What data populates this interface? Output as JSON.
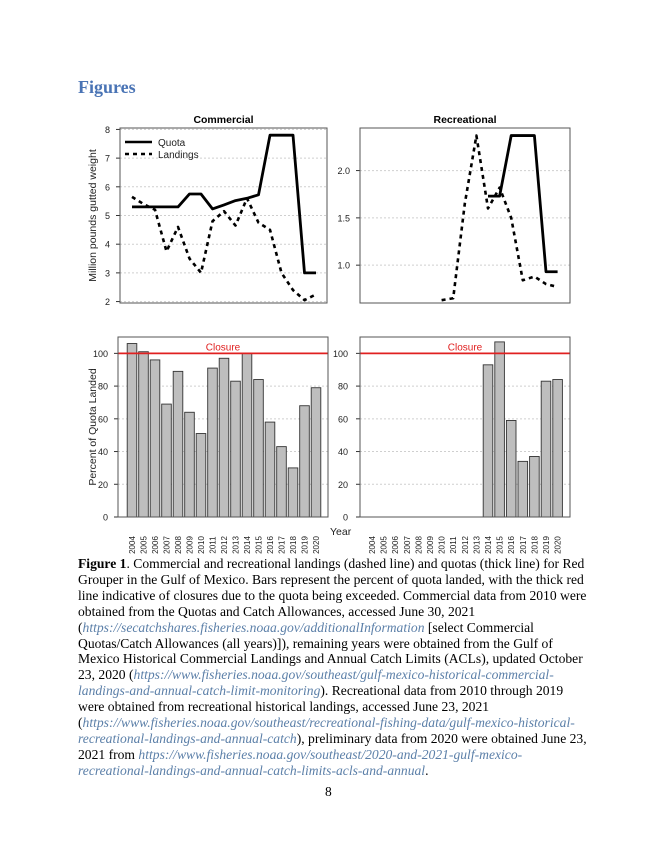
{
  "heading": "Figures",
  "chart_data": [
    {
      "type": "line",
      "title": "Commercial",
      "ylabel": "Million pounds gutted weight",
      "ylim": [
        1.95,
        8.05
      ],
      "yticks": [
        "2",
        "3",
        "4",
        "5",
        "6",
        "7",
        "8"
      ],
      "grid": true,
      "legend": {
        "placement": "top-left",
        "entries": [
          "Quota",
          "Landings"
        ]
      },
      "x": [
        2004,
        2005,
        2006,
        2007,
        2008,
        2009,
        2010,
        2011,
        2012,
        2013,
        2014,
        2015,
        2016,
        2017,
        2018,
        2019,
        2020
      ],
      "series": [
        {
          "name": "Quota",
          "style": "solid-thick",
          "values": [
            5.3,
            5.3,
            5.3,
            5.3,
            5.3,
            5.75,
            5.75,
            5.23,
            5.37,
            5.52,
            5.6,
            5.72,
            7.8,
            7.8,
            7.8,
            3.0,
            3.0
          ]
        },
        {
          "name": "Landings",
          "style": "dashed",
          "values": [
            5.65,
            5.4,
            5.2,
            3.75,
            4.6,
            3.5,
            3.0,
            4.8,
            5.15,
            4.65,
            5.6,
            4.75,
            4.5,
            3.0,
            2.4,
            2.05,
            2.25
          ]
        }
      ]
    },
    {
      "type": "line",
      "title": "Recreational",
      "ylim": [
        0.6,
        2.45
      ],
      "yticks": [
        "1.0",
        "1.5",
        "2.0"
      ],
      "grid": true,
      "x": [
        2004,
        2005,
        2006,
        2007,
        2008,
        2009,
        2010,
        2011,
        2012,
        2013,
        2014,
        2015,
        2016,
        2017,
        2018,
        2019,
        2020
      ],
      "series": [
        {
          "name": "Quota",
          "style": "solid-thick",
          "values": [
            null,
            null,
            null,
            null,
            null,
            null,
            null,
            null,
            null,
            null,
            1.73,
            1.73,
            2.37,
            2.37,
            2.37,
            0.93,
            0.93
          ]
        },
        {
          "name": "Landings",
          "style": "dashed",
          "values": [
            null,
            null,
            null,
            null,
            null,
            null,
            0.63,
            0.65,
            1.65,
            2.37,
            1.6,
            1.82,
            1.5,
            0.84,
            0.88,
            0.8,
            0.77
          ]
        }
      ]
    },
    {
      "type": "bar",
      "ylabel": "Percent of Quota Landed",
      "xlabel": "Year",
      "ylim": [
        0,
        110
      ],
      "yticks": [
        "0",
        "20",
        "40",
        "60",
        "80",
        "100"
      ],
      "grid": true,
      "closure_label": "Closure",
      "closure_value": 100,
      "closure_color": "#e02020",
      "bar_color": "#bebebe",
      "categories": [
        "2004",
        "2005",
        "2006",
        "2007",
        "2008",
        "2009",
        "2010",
        "2011",
        "2012",
        "2013",
        "2014",
        "2015",
        "2016",
        "2017",
        "2018",
        "2019",
        "2020"
      ],
      "values": [
        106,
        101,
        96,
        69,
        89,
        64,
        51,
        91,
        97,
        83,
        100,
        84,
        58,
        43,
        30,
        68,
        79
      ]
    },
    {
      "type": "bar",
      "ylim": [
        0,
        110
      ],
      "yticks": [
        "0",
        "20",
        "40",
        "60",
        "80",
        "100"
      ],
      "grid": true,
      "closure_label": "Closure",
      "closure_value": 100,
      "closure_color": "#e02020",
      "bar_color": "#bebebe",
      "categories": [
        "2004",
        "2005",
        "2006",
        "2007",
        "2008",
        "2009",
        "2010",
        "2011",
        "2012",
        "2013",
        "2014",
        "2015",
        "2016",
        "2017",
        "2018",
        "2019",
        "2020"
      ],
      "values": [
        null,
        null,
        null,
        null,
        null,
        null,
        null,
        null,
        null,
        null,
        93,
        107,
        59,
        34,
        37,
        83,
        84
      ]
    }
  ],
  "caption": {
    "label": "Figure 1",
    "t1": ". Commercial and recreational landings (dashed line) and quotas (thick line) for Red Grouper in the Gulf of Mexico. Bars represent the percent of quota landed, with the thick red line indicative of closures due to the quota being exceeded. Commercial data from 2010 were obtained from the Quotas and Catch Allowances, accessed June 30, 2021 (",
    "link1": "https://secatchshares.fisheries.noaa.gov/additionalInformation",
    "t2": " [select Commercial Quotas/Catch Allowances (all years)]), remaining years were obtained from the Gulf of Mexico Historical Commercial Landings and Annual Catch Limits (ACLs), updated October 23, 2020 (",
    "link2": "https://www.fisheries.noaa.gov/southeast/gulf-mexico-historical-commercial-landings-and-annual-catch-limit-monitoring",
    "t3": "). Recreational data from 2010 through 2019 were obtained from recreational historical landings, accessed June 23, 2021 (",
    "link3": "https://www.fisheries.noaa.gov/southeast/recreational-fishing-data/gulf-mexico-historical-recreational-landings-and-annual-catch",
    "t4": "), preliminary data from 2020 were obtained June 23, 2021 from ",
    "link4": "https://www.fisheries.noaa.gov/southeast/2020-and-2021-gulf-mexico-recreational-landings-and-annual-catch-limits-acls-and-annual",
    "t5": "."
  },
  "page_number": "8"
}
